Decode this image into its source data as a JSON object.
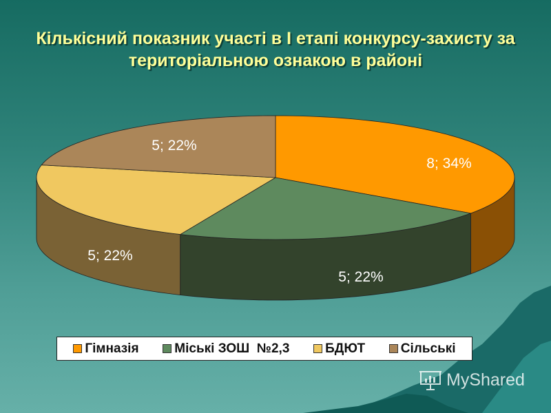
{
  "title": "Кількісний показник участі в І етапі конкурсу-захисту  за  територіальною  ознакою в районі",
  "chart_data": {
    "type": "pie",
    "style": "3d",
    "title": "Кількісний показник участі в І етапі конкурсу-захисту  за  територіальною  ознакою в районі",
    "categories": [
      "Гімназія",
      "Міські ЗОШ  №2,3",
      "БДЮТ",
      "Сільські"
    ],
    "values": [
      8,
      5,
      5,
      5
    ],
    "percents": [
      34,
      22,
      22,
      22
    ],
    "labels": [
      "8; 34%",
      "5; 22%",
      "5; 22%",
      "5; 22%"
    ],
    "colors": [
      "#ff9900",
      "#5e8a5e",
      "#f0c860",
      "#ab8659"
    ],
    "side_colors": [
      "#8a5005",
      "#33432c",
      "#7a6235",
      "#ab8659"
    ],
    "legend_position": "bottom"
  },
  "legend": {
    "items": [
      {
        "label": "Гімназія",
        "color": "#ff9900"
      },
      {
        "label": "Міські ЗОШ  №2,3",
        "color": "#5e8a5e"
      },
      {
        "label": "БДЮТ",
        "color": "#f0c860"
      },
      {
        "label": "Сільські",
        "color": "#ab8659"
      }
    ]
  },
  "watermark": {
    "text": "MyShared"
  }
}
